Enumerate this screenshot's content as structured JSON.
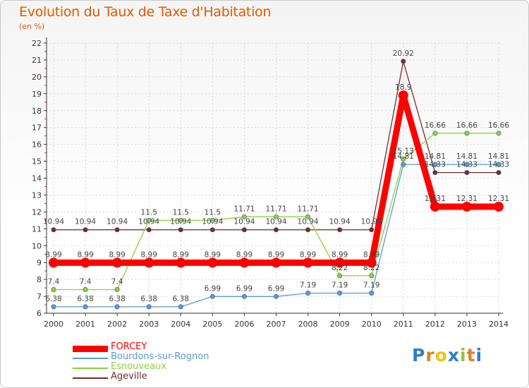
{
  "title": "Evolution du Taux de Taxe d'Habitation",
  "unit": "(en %)",
  "brand": {
    "letters": [
      "P",
      "r",
      "o",
      "x",
      "i",
      "t",
      "i"
    ],
    "colors": [
      "#2c7fc9",
      "#e67e22",
      "#f1c40f",
      "#2c7fc9",
      "#8dc63f",
      "#e67e22",
      "#2c7fc9"
    ]
  },
  "chart_data": {
    "type": "line",
    "x": [
      "2000",
      "2001",
      "2002",
      "2003",
      "2004",
      "2005",
      "2006",
      "2007",
      "2008",
      "2009",
      "2010",
      "2011",
      "2012",
      "2013",
      "2014"
    ],
    "ylim": [
      6,
      22
    ],
    "yticks": [
      6,
      7,
      8,
      9,
      10,
      11,
      12,
      13,
      14,
      15,
      16,
      17,
      18,
      19,
      20,
      21,
      22
    ],
    "grid": true,
    "legend_position": "bottom-left",
    "series": [
      {
        "name": "FORCEY",
        "color": "#ff0000",
        "values": [
          8.99,
          8.99,
          8.99,
          8.99,
          8.99,
          8.99,
          8.99,
          8.99,
          8.99,
          8.99,
          8.99,
          18.9,
          12.31,
          12.31,
          12.31
        ],
        "labels": [
          "8.99",
          "8.99",
          "8.99",
          "8.99",
          "8.99",
          "8.99",
          "8.99",
          "8.99",
          "8.99",
          "8.99",
          "8.99",
          "18.9",
          "12.31",
          "12.31",
          "12.31"
        ]
      },
      {
        "name": "Bourdons-sur-Rognon",
        "color": "#5b9bd5",
        "values": [
          6.38,
          6.38,
          6.38,
          6.38,
          6.38,
          6.99,
          6.99,
          6.99,
          7.19,
          7.19,
          7.19,
          14.81,
          14.81,
          14.81,
          14.81
        ],
        "labels": [
          "6.38",
          "6.38",
          "6.38",
          "6.38",
          "6.38",
          "6.99",
          "6.99",
          "6.99",
          "7.19",
          "7.19",
          "7.19",
          "14.81",
          "14.81",
          "14.81",
          "14.81"
        ]
      },
      {
        "name": "Esnouveaux",
        "color": "#8ed13a",
        "values": [
          7.4,
          7.4,
          7.4,
          11.5,
          11.5,
          11.5,
          11.71,
          11.71,
          11.71,
          8.22,
          8.22,
          15.13,
          16.66,
          16.66,
          16.66
        ],
        "labels": [
          "7.4",
          "7.4",
          "7.4",
          "11.5",
          "11.5",
          "11.5",
          "11.71",
          "11.71",
          "11.71",
          "8.22",
          "8.22",
          "15.13",
          "16.66",
          "16.66",
          "16.66"
        ]
      },
      {
        "name": "Ageville",
        "color": "#7b2a2a",
        "values": [
          10.94,
          10.94,
          10.94,
          10.94,
          10.94,
          10.94,
          10.94,
          10.94,
          10.94,
          10.94,
          10.94,
          20.92,
          14.33,
          14.33,
          14.33
        ],
        "labels": [
          "10.94",
          "10.94",
          "10.94",
          "10.94",
          "10.94",
          "10.94",
          "10.94",
          "10.94",
          "10.94",
          "10.94",
          "10.94",
          "20.92",
          "14.33",
          "14.33",
          "14.33"
        ]
      }
    ]
  }
}
